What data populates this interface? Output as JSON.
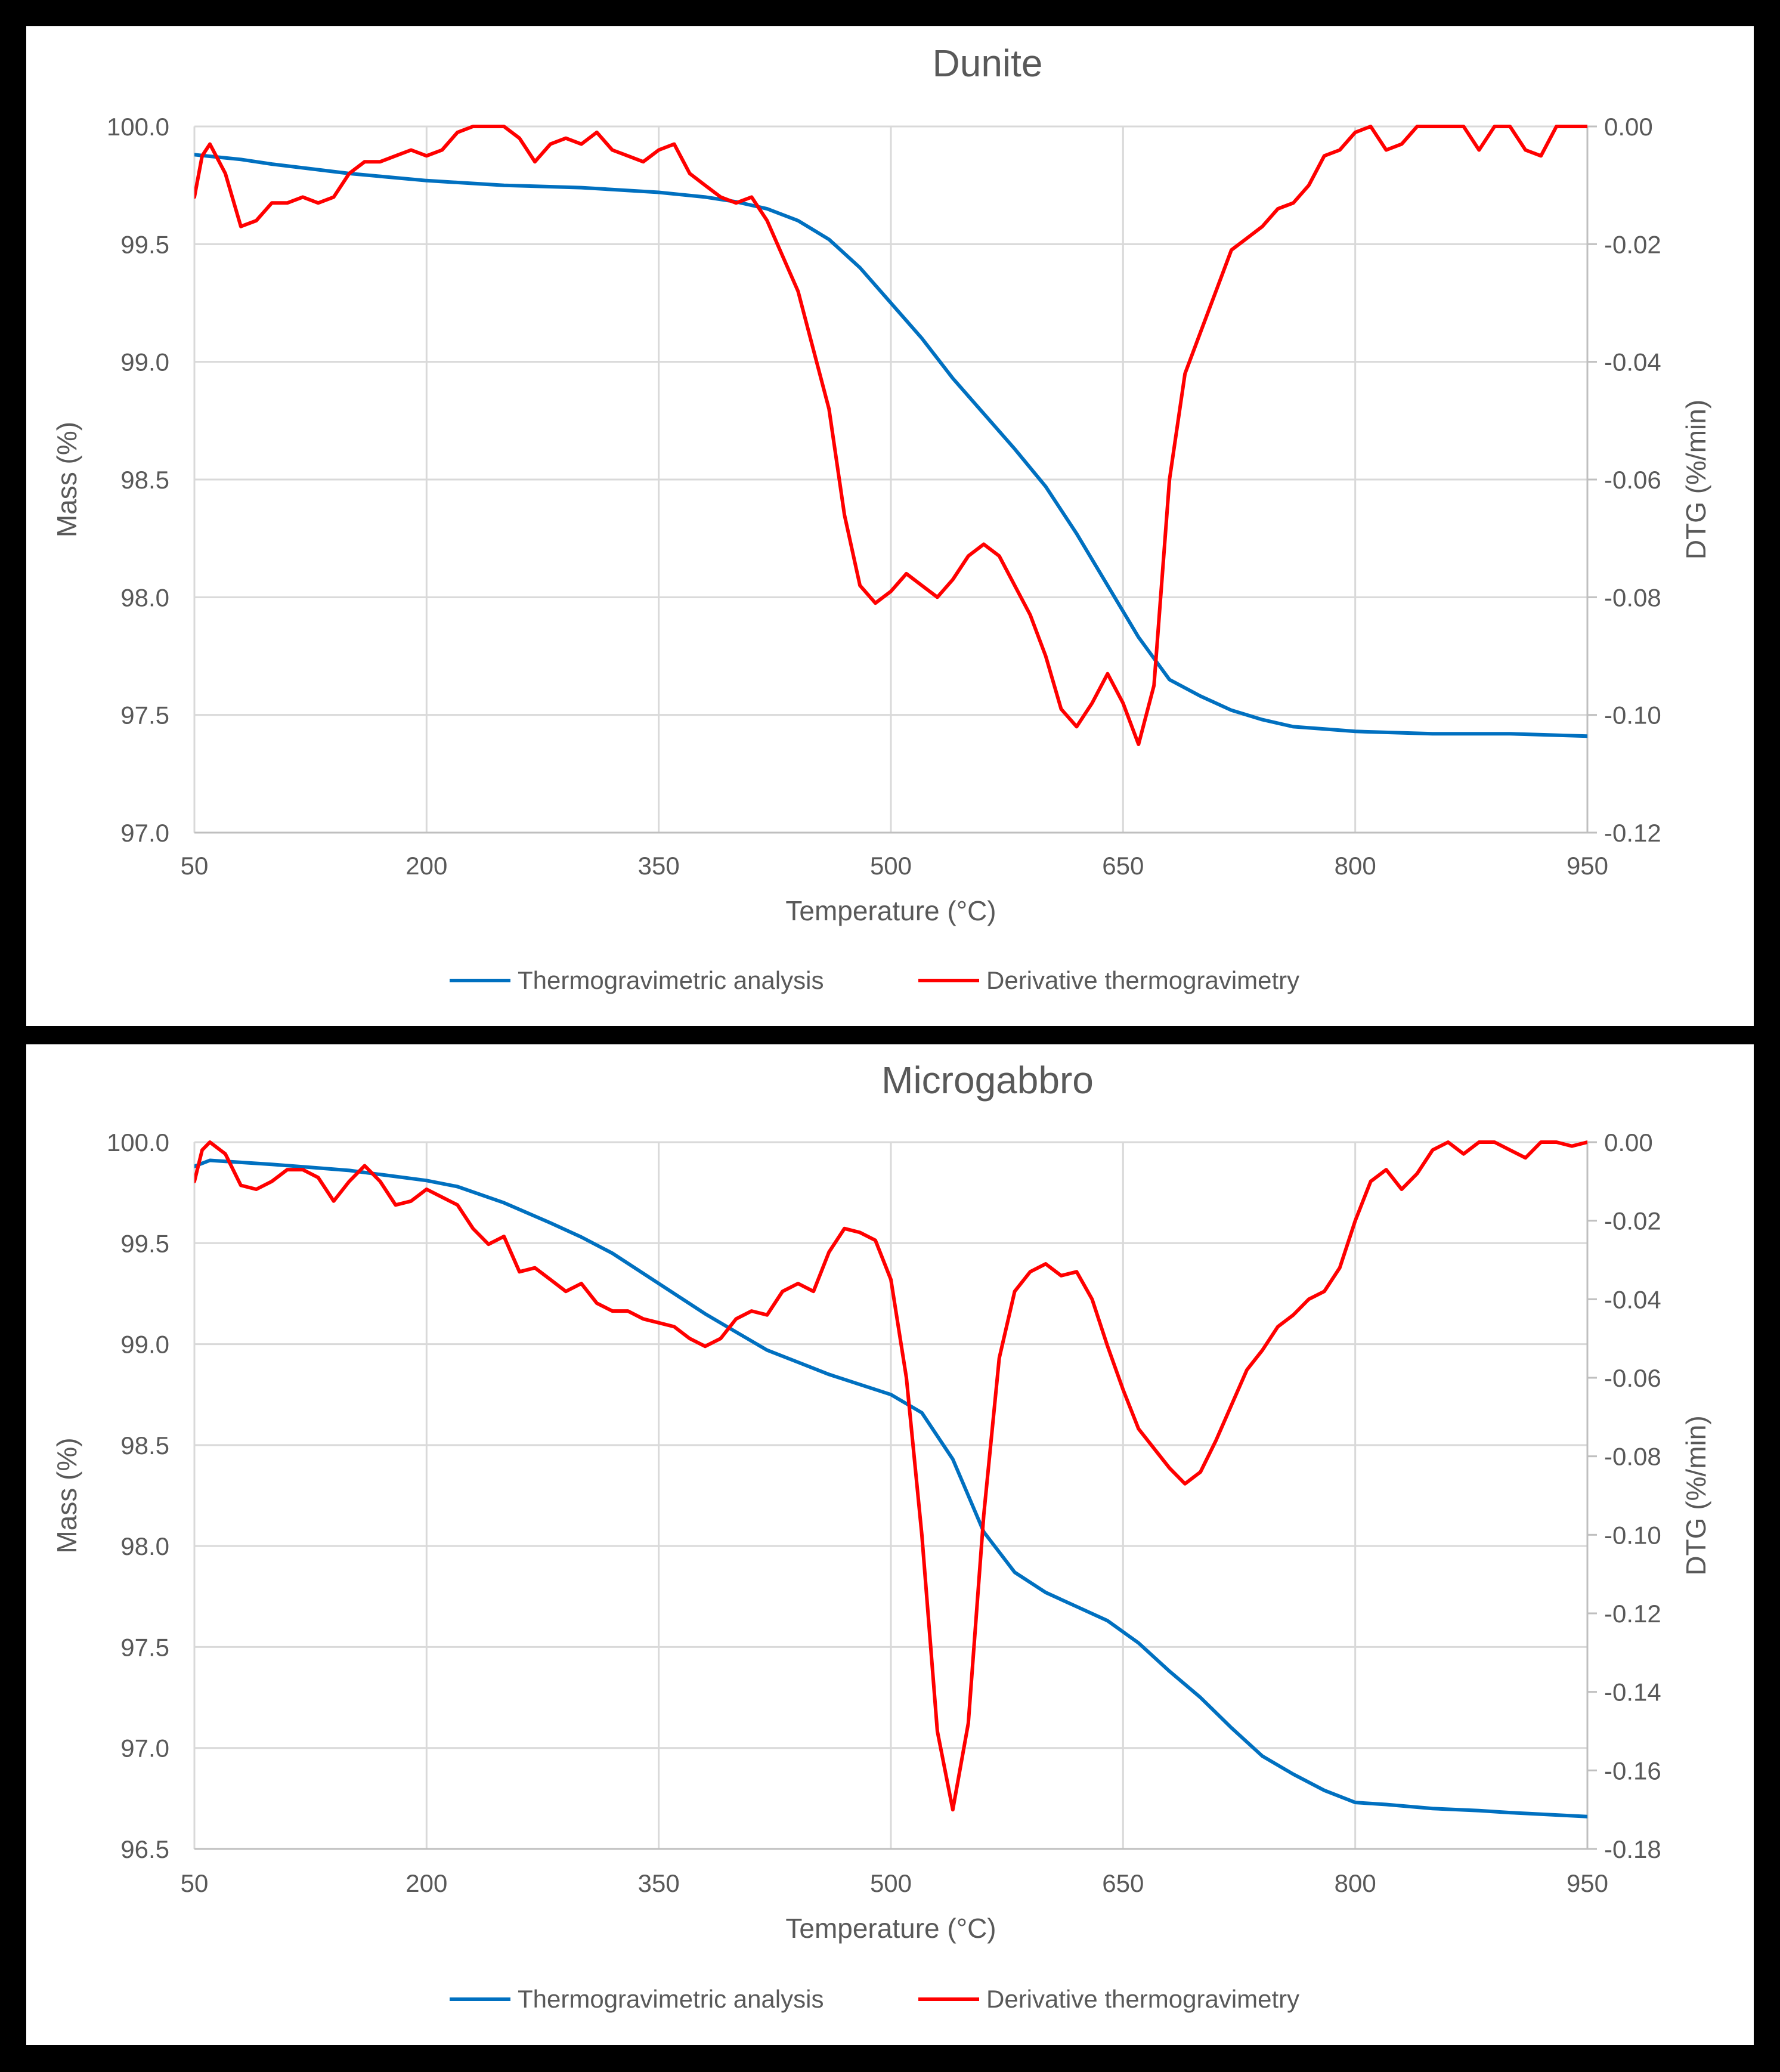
{
  "chart_data": [
    {
      "type": "line",
      "title": "Dunite",
      "xlabel": "Temperature (°C)",
      "ylabel": "Mass (%)",
      "y2label": "DTG (%/min)",
      "xlim": [
        50,
        950
      ],
      "ylim": [
        97.0,
        100.0
      ],
      "y2lim": [
        -0.12,
        0.0
      ],
      "xticks": [
        50,
        200,
        350,
        500,
        650,
        800,
        950
      ],
      "xtick_labels": [
        "50",
        "200",
        "350",
        "500",
        "650",
        "800",
        "950"
      ],
      "yticks": [
        97.0,
        97.5,
        98.0,
        98.5,
        99.0,
        99.5,
        100.0
      ],
      "ytick_labels": [
        "97.0",
        "97.5",
        "98.0",
        "98.5",
        "99.0",
        "99.5",
        "100.0"
      ],
      "y2ticks": [
        -0.12,
        -0.1,
        -0.08,
        -0.06,
        -0.04,
        -0.02,
        0.0
      ],
      "y2tick_labels": [
        "-0.12",
        "-0.10",
        "-0.08",
        "-0.06",
        "-0.04",
        "-0.02",
        "0.00"
      ],
      "grid": true,
      "legend_position": "bottom",
      "series": [
        {
          "name": "Thermogravimetric analysis",
          "axis": "left",
          "color": "#0070C0",
          "x": [
            50,
            80,
            100,
            150,
            200,
            250,
            300,
            350,
            380,
            400,
            420,
            440,
            460,
            480,
            500,
            520,
            540,
            560,
            580,
            600,
            620,
            640,
            660,
            680,
            700,
            720,
            740,
            760,
            780,
            800,
            850,
            900,
            950
          ],
          "y": [
            99.88,
            99.86,
            99.84,
            99.8,
            99.77,
            99.75,
            99.74,
            99.72,
            99.7,
            99.68,
            99.65,
            99.6,
            99.52,
            99.4,
            99.25,
            99.1,
            98.93,
            98.78,
            98.63,
            98.47,
            98.27,
            98.05,
            97.83,
            97.65,
            97.58,
            97.52,
            97.48,
            97.45,
            97.44,
            97.43,
            97.42,
            97.42,
            97.41
          ]
        },
        {
          "name": "Derivative thermogravimetry",
          "axis": "right",
          "color": "#FF0000",
          "x": [
            50,
            55,
            60,
            70,
            80,
            90,
            100,
            110,
            120,
            130,
            140,
            150,
            160,
            170,
            180,
            190,
            200,
            210,
            220,
            230,
            240,
            250,
            260,
            270,
            280,
            290,
            300,
            310,
            320,
            330,
            340,
            350,
            360,
            370,
            380,
            390,
            400,
            410,
            420,
            430,
            440,
            450,
            460,
            470,
            480,
            490,
            500,
            510,
            520,
            530,
            540,
            550,
            560,
            570,
            580,
            590,
            600,
            610,
            620,
            630,
            640,
            650,
            660,
            670,
            680,
            690,
            700,
            710,
            720,
            730,
            740,
            750,
            760,
            770,
            780,
            790,
            800,
            810,
            820,
            830,
            840,
            850,
            860,
            870,
            880,
            890,
            900,
            910,
            920,
            930,
            940,
            950
          ],
          "y": [
            -0.012,
            -0.005,
            -0.003,
            -0.008,
            -0.017,
            -0.016,
            -0.013,
            -0.013,
            -0.012,
            -0.013,
            -0.012,
            -0.008,
            -0.006,
            -0.006,
            -0.005,
            -0.004,
            -0.005,
            -0.004,
            -0.001,
            0.0,
            0.0,
            0.0,
            -0.002,
            -0.006,
            -0.003,
            -0.002,
            -0.003,
            -0.001,
            -0.004,
            -0.005,
            -0.006,
            -0.004,
            -0.003,
            -0.008,
            -0.01,
            -0.012,
            -0.013,
            -0.012,
            -0.016,
            -0.022,
            -0.028,
            -0.038,
            -0.048,
            -0.066,
            -0.078,
            -0.081,
            -0.079,
            -0.076,
            -0.078,
            -0.08,
            -0.077,
            -0.073,
            -0.071,
            -0.073,
            -0.078,
            -0.083,
            -0.09,
            -0.099,
            -0.102,
            -0.098,
            -0.093,
            -0.098,
            -0.105,
            -0.095,
            -0.06,
            -0.042,
            -0.035,
            -0.028,
            -0.021,
            -0.019,
            -0.017,
            -0.014,
            -0.013,
            -0.01,
            -0.005,
            -0.004,
            -0.001,
            0.0,
            -0.004,
            -0.003,
            0.0,
            0.0,
            0.0,
            0.0,
            -0.004,
            0.0,
            0.0,
            -0.004,
            -0.005,
            0.0,
            0.0,
            0.0
          ]
        }
      ]
    },
    {
      "type": "line",
      "title": "Microgabbro",
      "xlabel": "Temperature (°C)",
      "ylabel": "Mass (%)",
      "y2label": "DTG (%/min)",
      "xlim": [
        50,
        950
      ],
      "ylim": [
        96.5,
        100.0
      ],
      "y2lim": [
        -0.18,
        0.0
      ],
      "xticks": [
        50,
        200,
        350,
        500,
        650,
        800,
        950
      ],
      "xtick_labels": [
        "50",
        "200",
        "350",
        "500",
        "650",
        "800",
        "950"
      ],
      "yticks": [
        96.5,
        97.0,
        97.5,
        98.0,
        98.5,
        99.0,
        99.5,
        100.0
      ],
      "ytick_labels": [
        "96.5",
        "97.0",
        "97.5",
        "98.0",
        "98.5",
        "99.0",
        "99.5",
        "100.0"
      ],
      "y2ticks": [
        -0.18,
        -0.16,
        -0.14,
        -0.12,
        -0.1,
        -0.08,
        -0.06,
        -0.04,
        -0.02,
        0.0
      ],
      "y2tick_labels": [
        "-0.18",
        "-0.16",
        "-0.14",
        "-0.12",
        "-0.10",
        "-0.08",
        "-0.06",
        "-0.04",
        "-0.02",
        "0.00"
      ],
      "grid": true,
      "legend_position": "bottom",
      "series": [
        {
          "name": "Thermogravimetric analysis",
          "axis": "left",
          "color": "#0070C0",
          "x": [
            50,
            60,
            80,
            100,
            150,
            200,
            220,
            250,
            280,
            300,
            320,
            350,
            380,
            400,
            420,
            440,
            460,
            480,
            500,
            520,
            540,
            550,
            560,
            580,
            600,
            620,
            640,
            660,
            680,
            700,
            720,
            740,
            760,
            780,
            800,
            820,
            850,
            880,
            900,
            950
          ],
          "y": [
            99.88,
            99.91,
            99.9,
            99.89,
            99.86,
            99.81,
            99.78,
            99.7,
            99.6,
            99.53,
            99.45,
            99.3,
            99.15,
            99.06,
            98.97,
            98.91,
            98.85,
            98.8,
            98.75,
            98.66,
            98.43,
            98.25,
            98.07,
            97.87,
            97.77,
            97.7,
            97.63,
            97.52,
            97.38,
            97.25,
            97.1,
            96.96,
            96.87,
            96.79,
            96.73,
            96.72,
            96.7,
            96.69,
            96.68,
            96.66
          ]
        },
        {
          "name": "Derivative thermogravimetry",
          "axis": "right",
          "color": "#FF0000",
          "x": [
            50,
            55,
            60,
            70,
            80,
            90,
            100,
            110,
            120,
            130,
            140,
            150,
            160,
            170,
            180,
            190,
            200,
            210,
            220,
            230,
            240,
            250,
            260,
            270,
            280,
            290,
            300,
            310,
            320,
            330,
            340,
            350,
            360,
            370,
            380,
            390,
            400,
            410,
            420,
            430,
            440,
            450,
            460,
            470,
            480,
            490,
            500,
            510,
            520,
            530,
            540,
            550,
            560,
            570,
            580,
            590,
            600,
            610,
            620,
            630,
            640,
            650,
            660,
            670,
            680,
            690,
            700,
            710,
            720,
            730,
            740,
            750,
            760,
            770,
            780,
            790,
            800,
            810,
            820,
            830,
            840,
            850,
            860,
            870,
            880,
            890,
            900,
            910,
            920,
            930,
            940,
            950
          ],
          "y": [
            -0.01,
            -0.002,
            0.0,
            -0.003,
            -0.011,
            -0.012,
            -0.01,
            -0.007,
            -0.007,
            -0.009,
            -0.015,
            -0.01,
            -0.006,
            -0.01,
            -0.016,
            -0.015,
            -0.012,
            -0.014,
            -0.016,
            -0.022,
            -0.026,
            -0.024,
            -0.033,
            -0.032,
            -0.035,
            -0.038,
            -0.036,
            -0.041,
            -0.043,
            -0.043,
            -0.045,
            -0.046,
            -0.047,
            -0.05,
            -0.052,
            -0.05,
            -0.045,
            -0.043,
            -0.044,
            -0.038,
            -0.036,
            -0.038,
            -0.028,
            -0.022,
            -0.023,
            -0.025,
            -0.035,
            -0.06,
            -0.1,
            -0.15,
            -0.17,
            -0.148,
            -0.095,
            -0.055,
            -0.038,
            -0.033,
            -0.031,
            -0.034,
            -0.033,
            -0.04,
            -0.052,
            -0.063,
            -0.073,
            -0.078,
            -0.083,
            -0.087,
            -0.084,
            -0.076,
            -0.067,
            -0.058,
            -0.053,
            -0.047,
            -0.044,
            -0.04,
            -0.038,
            -0.032,
            -0.02,
            -0.01,
            -0.007,
            -0.012,
            -0.008,
            -0.002,
            0.0,
            -0.003,
            0.0,
            0.0,
            -0.002,
            -0.004,
            0.0,
            0.0,
            -0.001,
            0.0
          ]
        }
      ]
    }
  ]
}
